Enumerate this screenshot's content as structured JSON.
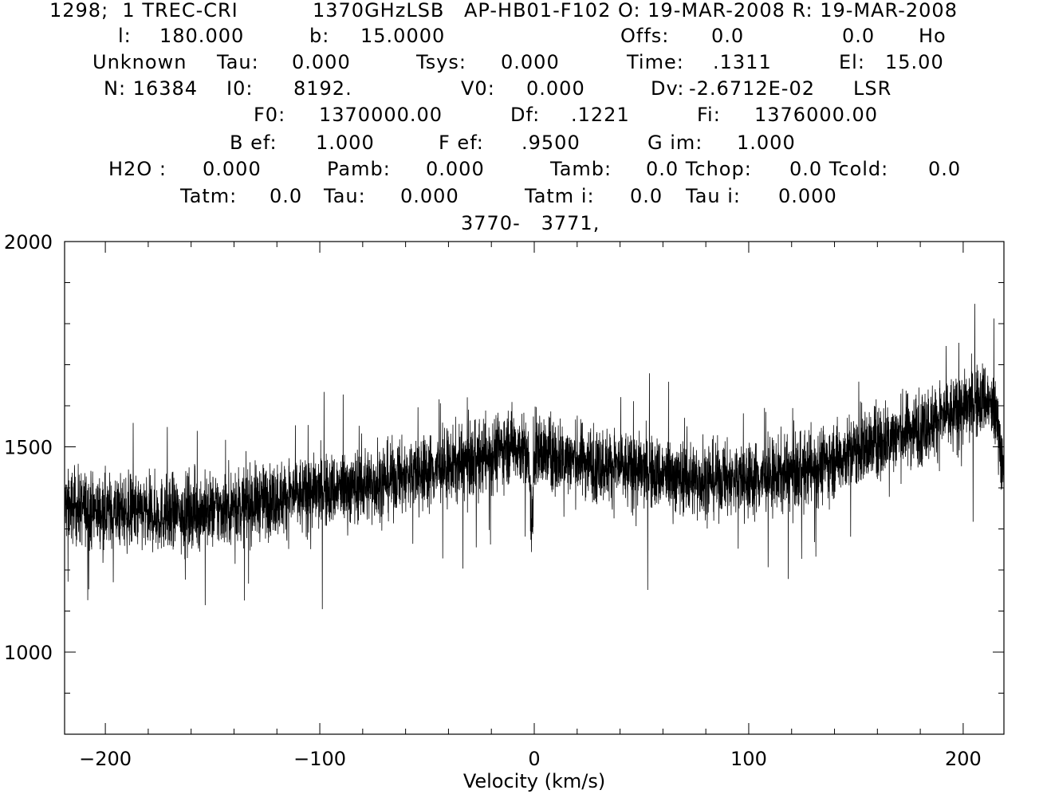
{
  "header": {
    "lines": [
      [
        "1298;  1 TREC-CRI",
        "1370GHzLSB",
        "AP-HB01-F102 O: 19-MAR-2008 R: 19-MAR-2008"
      ],
      [
        "l:",
        "180.000",
        "b:",
        "15.0000",
        "Offs:",
        "0.0",
        "0.0",
        "Ho"
      ],
      [
        "Unknown",
        "Tau:",
        "0.000",
        "Tsys:",
        "0.000",
        "Time:",
        ".1311",
        "El:",
        "15.00"
      ],
      [
        "N: 16384",
        "I0:",
        "8192.",
        "V0:",
        "0.000",
        "Dv:",
        "-2.6712E-02",
        "LSR"
      ],
      [
        "F0:",
        "1370000.00",
        "Df:",
        ".1221",
        "Fi:",
        "1376000.00"
      ],
      [
        "B ef:",
        "1.000",
        "F ef:",
        ".9500",
        "G im:",
        "1.000"
      ],
      [
        "H2O :",
        "0.000",
        "Pamb:",
        "0.000",
        "Tamb:",
        "0.0 Tchop:",
        "0.0 Tcold:",
        "0.0"
      ],
      [
        "Tatm:",
        "0.0",
        "Tau:",
        "0.000",
        "Tatm i:",
        "0.0",
        "Tau i:",
        "0.000"
      ],
      [
        "3770-   3771,"
      ]
    ]
  },
  "chart_data": {
    "type": "line",
    "title": "",
    "xlabel": "Velocity (km/s)",
    "ylabel": "",
    "xlim": [
      -219,
      219
    ],
    "ylim": [
      800,
      2000
    ],
    "xticks": [
      -200,
      -100,
      0,
      100,
      200
    ],
    "xtick_labels": [
      "−200",
      "−100",
      "0",
      "100",
      "200"
    ],
    "yticks": [
      1000,
      1500,
      2000
    ],
    "ytick_labels": [
      "1000",
      "1500",
      "2000"
    ],
    "series": [
      {
        "baseline": {
          "x": [
            -219,
            -200,
            -175,
            -150,
            -125,
            -100,
            -75,
            -50,
            -25,
            -10,
            -3,
            -1,
            0,
            2,
            10,
            25,
            50,
            75,
            100,
            125,
            150,
            175,
            200,
            210,
            216,
            219
          ],
          "y": [
            1355,
            1345,
            1335,
            1345,
            1370,
            1390,
            1410,
            1440,
            1470,
            1510,
            1480,
            1300,
            1480,
            1490,
            1475,
            1465,
            1440,
            1420,
            1420,
            1440,
            1490,
            1540,
            1590,
            1620,
            1570,
            1420
          ]
        },
        "noise_rms": 45,
        "spike_max": 2000,
        "line_color": "#000000"
      }
    ]
  }
}
